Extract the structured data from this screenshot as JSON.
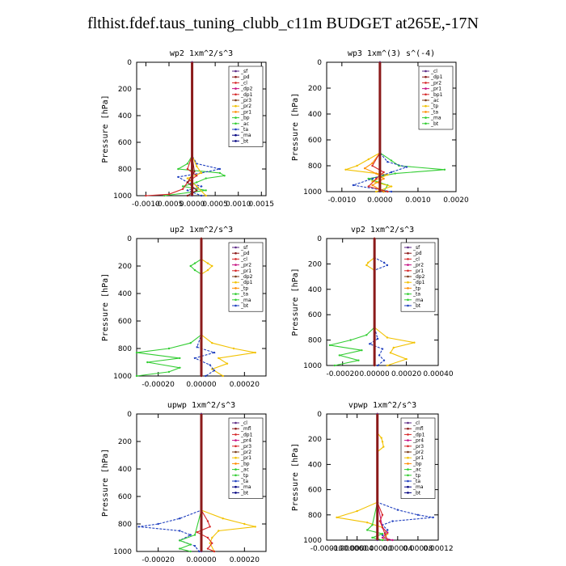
{
  "title": "flthist.fdef.taus_tuning_clubb_c11m  BUDGET at265E,-17N",
  "colors": {
    "red": "#d62728",
    "darkred": "#8b1a1a",
    "purple": "#5b2a86",
    "magenta": "#c71585",
    "orange": "#ff8c00",
    "yellow": "#f2c200",
    "green": "#32cd32",
    "blue": "#1f3fbf",
    "cyan": "#00c8d8",
    "navy": "#000080",
    "brown": "#7a3b1a"
  },
  "chart_data": [
    {
      "type": "line",
      "title": "wp2",
      "units": "1xm^2/s^3",
      "ylabel": "Pressure [hPa]",
      "ylim": [
        1000,
        0
      ],
      "xlim": [
        -0.0012,
        0.0016
      ],
      "xticks": [
        -0.001,
        -0.0005,
        0.0,
        0.0005,
        0.001,
        0.0015
      ],
      "xtick_labels": [
        "-0.0010",
        "-0.0005",
        "0.0000",
        "0.0005",
        "0.0010",
        "0.0015"
      ],
      "yticks": [
        0,
        200,
        400,
        600,
        800,
        1000
      ],
      "legend": [
        "_sf",
        "_pd",
        "_cl",
        "_dp2",
        "_dp1",
        "_pr3",
        "_pr2",
        "_pr1",
        "_bp",
        "_ac",
        "_ta",
        "_ma",
        "_bt"
      ],
      "series": [
        {
          "name": "_bp",
          "color": "green",
          "levels": [
            0,
            700,
            760,
            800,
            830,
            850,
            870,
            900,
            930,
            960,
            1000
          ],
          "values": [
            0,
            0,
            -0.0001,
            -0.0003,
            0.0006,
            0.0007,
            0.0003,
            0.0001,
            -0.0002,
            0.0003,
            -0.0006
          ]
        },
        {
          "name": "_ta",
          "color": "blue",
          "levels": [
            0,
            700,
            760,
            800,
            830,
            860,
            900,
            930,
            960,
            1000
          ],
          "values": [
            0,
            0,
            0.0001,
            0.0006,
            0.0002,
            -0.0003,
            -0.0001,
            0.0002,
            -0.0001,
            0.0002
          ]
        },
        {
          "name": "_pr2",
          "color": "yellow",
          "levels": [
            0,
            700,
            780,
            830,
            870,
            930,
            1000
          ],
          "values": [
            0,
            0,
            0.0001,
            0.0002,
            -0.0001,
            0.0001,
            0.0003
          ]
        },
        {
          "name": "_dp1",
          "color": "red",
          "levels": [
            0,
            700,
            800,
            850,
            900,
            950,
            990,
            1000
          ],
          "values": [
            0,
            0,
            -0.0001,
            0.0001,
            -0.0001,
            -0.0002,
            -0.0005,
            -0.001
          ]
        },
        {
          "name": "_pd",
          "color": "darkred",
          "levels": [
            0,
            700,
            820,
            900,
            960,
            1000
          ],
          "values": [
            0,
            0,
            5e-05,
            -0.0001,
            0.0001,
            -0.0001
          ]
        },
        {
          "name": "_cl",
          "color": "purple",
          "levels": [
            0,
            1000
          ],
          "values": [
            0,
            0
          ]
        }
      ]
    },
    {
      "type": "line",
      "title": "wp3",
      "units": "1xm^(3) s^(-4)",
      "ylabel": "Pressure [hPa]",
      "ylim": [
        1000,
        0
      ],
      "xlim": [
        -0.0014,
        0.002
      ],
      "xticks": [
        -0.001,
        0.0,
        0.001,
        0.002
      ],
      "xtick_labels": [
        "-0.0010",
        "0.0000",
        "0.0010",
        "0.0020"
      ],
      "yticks": [
        0,
        200,
        400,
        600,
        800,
        1000
      ],
      "legend": [
        "_cl",
        "_dp1",
        "_pr2",
        "_pr1",
        "_bp1",
        "_ac",
        "_tp",
        "_ta",
        "_ma",
        "_bt"
      ],
      "series": [
        {
          "name": "_bp1",
          "color": "green",
          "levels": [
            0,
            700,
            760,
            800,
            830,
            860,
            900,
            950,
            1000
          ],
          "values": [
            0,
            0,
            0.0003,
            0.0005,
            0.0017,
            0.0004,
            -0.0003,
            0.0002,
            0.0001
          ]
        },
        {
          "name": "_pr2",
          "color": "yellow",
          "levels": [
            0,
            700,
            750,
            800,
            830,
            870,
            920,
            960,
            1000
          ],
          "values": [
            0,
            0,
            -0.0003,
            -0.0006,
            -0.0009,
            0.0002,
            -0.0002,
            0.0003,
            -0.0001
          ]
        },
        {
          "name": "_pr1",
          "color": "orange",
          "levels": [
            0,
            700,
            780,
            820,
            860,
            900,
            950,
            1000
          ],
          "values": [
            0,
            0,
            -0.0002,
            -0.0004,
            -0.0001,
            0.0001,
            -0.0002,
            0.0001
          ]
        },
        {
          "name": "_ta",
          "color": "blue",
          "levels": [
            0,
            700,
            770,
            810,
            850,
            900,
            950,
            1000
          ],
          "values": [
            0,
            0,
            0.0002,
            0.0007,
            0.0003,
            -0.0002,
            -0.0007,
            0.0003
          ]
        },
        {
          "name": "_dp1",
          "color": "red",
          "levels": [
            0,
            700,
            800,
            850,
            900,
            960,
            1000
          ],
          "values": [
            0,
            0,
            -0.0002,
            0.0001,
            -0.0001,
            -0.0003,
            0.0002
          ]
        },
        {
          "name": "_cl",
          "color": "purple",
          "levels": [
            0,
            1000
          ],
          "values": [
            0,
            0
          ]
        }
      ]
    },
    {
      "type": "line",
      "title": "up2",
      "units": "1xm^2/s^3",
      "ylabel": "Pressure [hPa]",
      "ylim": [
        1000,
        0
      ],
      "xlim": [
        -0.0003,
        0.0003
      ],
      "xticks": [
        -0.0002,
        0.0,
        0.0002
      ],
      "xtick_labels": [
        "-0.00020",
        "0.00000",
        "0.00020"
      ],
      "yticks": [
        0,
        200,
        400,
        600,
        800,
        1000
      ],
      "legend": [
        "_sf",
        "_pd",
        "_cl",
        "_pr2",
        "_pr1",
        "_dp2",
        "_dp1",
        "_tp",
        "_ta",
        "_ma",
        "_bt"
      ],
      "series": [
        {
          "name": "_dp2",
          "color": "green",
          "levels": [
            0,
            150,
            180,
            200,
            230,
            260,
            700,
            760,
            800,
            830,
            870,
            900,
            940,
            970,
            1000
          ],
          "values": [
            0,
            0,
            -3e-05,
            -5e-05,
            -3e-05,
            0,
            0,
            -5e-05,
            -0.00015,
            -0.0003,
            -0.0001,
            -0.00025,
            -0.0001,
            -0.00015,
            -0.0003
          ]
        },
        {
          "name": "_pr2",
          "color": "yellow",
          "levels": [
            0,
            150,
            180,
            200,
            230,
            260,
            700,
            760,
            800,
            830,
            870,
            910,
            950,
            1000
          ],
          "values": [
            0,
            0,
            3e-05,
            5e-05,
            3e-05,
            0,
            0,
            5e-05,
            0.00015,
            0.00025,
            8e-05,
            0.00012,
            5e-05,
            0.0001
          ]
        },
        {
          "name": "_tp",
          "color": "blue",
          "levels": [
            0,
            700,
            790,
            830,
            870,
            920,
            960,
            1000
          ],
          "values": [
            0,
            0,
            -2e-05,
            6e-05,
            -3e-05,
            4e-05,
            6e-05,
            2e-05
          ]
        },
        {
          "name": "_cl",
          "color": "red",
          "levels": [
            0,
            1000
          ],
          "values": [
            0,
            0
          ]
        },
        {
          "name": "_sf",
          "color": "darkred",
          "levels": [
            0,
            1000
          ],
          "values": [
            0,
            0
          ]
        }
      ]
    },
    {
      "type": "line",
      "title": "vp2",
      "units": "1xm^2/s^3",
      "ylabel": "Pressure [hPa]",
      "ylim": [
        1000,
        0
      ],
      "xlim": [
        -0.0003,
        0.0004
      ],
      "xticks": [
        -0.0002,
        0.0,
        0.0002,
        0.0004
      ],
      "xtick_labels": [
        "-0.00020",
        "0.00000",
        "0.00020",
        "0.00040"
      ],
      "yticks": [
        0,
        200,
        400,
        600,
        800,
        1000
      ],
      "legend": [
        "_sf",
        "_pd",
        "_cl",
        "_pr2",
        "_pr1",
        "_dp2",
        "_dp1",
        "_tp",
        "_ta",
        "_ma",
        "_bt"
      ],
      "series": [
        {
          "name": "_dp2",
          "color": "green",
          "levels": [
            0,
            700,
            760,
            800,
            840,
            880,
            920,
            960,
            1000
          ],
          "values": [
            0,
            0,
            -5e-05,
            -0.00015,
            -0.00028,
            -8e-05,
            -0.00022,
            -0.0001,
            -0.00025
          ]
        },
        {
          "name": "_pr2",
          "color": "yellow",
          "levels": [
            0,
            150,
            190,
            210,
            250,
            700,
            780,
            820,
            860,
            900,
            950,
            1000
          ],
          "values": [
            0,
            0,
            -4e-05,
            -5e-05,
            0,
            0,
            8e-05,
            0.00025,
            0.00012,
            0.0001,
            0.0002,
            8e-05
          ]
        },
        {
          "name": "_tp",
          "color": "blue",
          "levels": [
            0,
            150,
            190,
            210,
            250,
            700,
            790,
            830,
            870,
            920,
            960,
            1000
          ],
          "values": [
            0,
            0,
            6e-05,
            8e-05,
            0,
            0,
            2e-05,
            -3e-05,
            5e-05,
            3e-05,
            6e-05,
            2e-05
          ]
        },
        {
          "name": "_cl",
          "color": "red",
          "levels": [
            0,
            1000
          ],
          "values": [
            0,
            0
          ]
        },
        {
          "name": "_sf",
          "color": "darkred",
          "levels": [
            0,
            1000
          ],
          "values": [
            0,
            0
          ]
        }
      ]
    },
    {
      "type": "line",
      "title": "upwp",
      "units": "1xm^2/s^3",
      "ylabel": "Pressure [hPa]",
      "ylim": [
        1000,
        0
      ],
      "xlim": [
        -0.0003,
        0.0003
      ],
      "xticks": [
        -0.0002,
        0.0,
        0.0002
      ],
      "xtick_labels": [
        "-0.00020",
        "0.00000",
        "0.00020"
      ],
      "yticks": [
        0,
        200,
        400,
        600,
        800,
        1000
      ],
      "legend": [
        "_cl",
        "_mfl",
        "_dp1",
        "_pr4",
        "_pr3",
        "_pr2",
        "_pr1",
        "_bp",
        "_ac",
        "_tp",
        "_ta",
        "_ma",
        "_bt"
      ],
      "series": [
        {
          "name": "_ta",
          "color": "blue",
          "levels": [
            0,
            700,
            760,
            800,
            820,
            850,
            880,
            920,
            960,
            1000
          ],
          "values": [
            0,
            0,
            -0.0001,
            -0.0002,
            -0.00029,
            -0.0001,
            -5e-05,
            -0.0001,
            -3e-05,
            -1e-05
          ]
        },
        {
          "name": "_pr2",
          "color": "yellow",
          "levels": [
            0,
            700,
            760,
            800,
            820,
            850,
            900,
            940,
            1000
          ],
          "values": [
            0,
            0,
            0.0001,
            0.0002,
            0.00025,
            8e-05,
            5e-05,
            4e-05,
            6e-05
          ]
        },
        {
          "name": "_bp",
          "color": "green",
          "levels": [
            0,
            700,
            880,
            920,
            950,
            980,
            1000
          ],
          "values": [
            0,
            0,
            -3e-05,
            -0.0001,
            -5e-05,
            -0.0001,
            -5e-05
          ]
        },
        {
          "name": "_dp1",
          "color": "red",
          "levels": [
            0,
            700,
            780,
            820,
            860,
            900,
            940,
            980,
            1000
          ],
          "values": [
            0,
            0,
            3e-05,
            4e-05,
            -2e-05,
            3e-05,
            5e-05,
            3e-05,
            6e-05
          ]
        },
        {
          "name": "_cl",
          "color": "purple",
          "levels": [
            0,
            1000
          ],
          "values": [
            0,
            0
          ]
        }
      ]
    },
    {
      "type": "line",
      "title": "vpwp",
      "units": "1xm^2/s^3",
      "ylabel": "Pressure [hPa]",
      "ylim": [
        1000,
        0
      ],
      "xlim": [
        -0.0001,
        0.00012
      ],
      "xticks": [
        -0.0001,
        -6e-05,
        -4e-05,
        0.0,
        4e-05,
        8e-05,
        0.00012
      ],
      "xtick_labels": [
        "-0.00010",
        "-0.00006",
        "-0.00004",
        "0.00000",
        "0.00004",
        "0.00008",
        "0.00012"
      ],
      "yticks": [
        0,
        200,
        400,
        600,
        800,
        1000
      ],
      "legend": [
        "_cl",
        "_mfl",
        "_dp1",
        "_pr4",
        "_pr3",
        "_pr2",
        "_pr1",
        "_bp",
        "_ac",
        "_tp",
        "_ta",
        "_ma",
        "_bt"
      ],
      "series": [
        {
          "name": "_ta",
          "color": "blue",
          "levels": [
            0,
            700,
            760,
            800,
            820,
            850,
            880,
            920,
            960,
            1000
          ],
          "values": [
            0,
            0,
            4e-05,
            8e-05,
            0.00011,
            3e-05,
            1e-05,
            2e-05,
            1e-05,
            2e-05
          ]
        },
        {
          "name": "_pr2",
          "color": "yellow",
          "levels": [
            0,
            150,
            190,
            220,
            260,
            300,
            700,
            770,
            820,
            860,
            900,
            950,
            1000
          ],
          "values": [
            0,
            0,
            8e-06,
            1e-05,
            1.2e-05,
            0,
            0,
            -4e-05,
            -8e-05,
            -2e-05,
            1e-05,
            2e-05,
            1e-05
          ]
        },
        {
          "name": "_bp",
          "color": "green",
          "levels": [
            0,
            700,
            880,
            920,
            950,
            980,
            1000
          ],
          "values": [
            0,
            0,
            -1e-05,
            -2e-05,
            1e-05,
            -1e-05,
            1e-05
          ]
        },
        {
          "name": "_pr1",
          "color": "magenta",
          "levels": [
            0,
            700,
            900,
            940,
            980,
            1000
          ],
          "values": [
            0,
            0,
            1e-05,
            2e-05,
            1e-05,
            3e-05
          ]
        },
        {
          "name": "_dp1",
          "color": "red",
          "levels": [
            0,
            700,
            800,
            850,
            900,
            950,
            1000
          ],
          "values": [
            0,
            0,
            1e-05,
            5e-06,
            1e-05,
            1.5e-05,
            2e-05
          ]
        },
        {
          "name": "_cl",
          "color": "purple",
          "levels": [
            0,
            1000
          ],
          "values": [
            0,
            0
          ]
        }
      ]
    }
  ]
}
